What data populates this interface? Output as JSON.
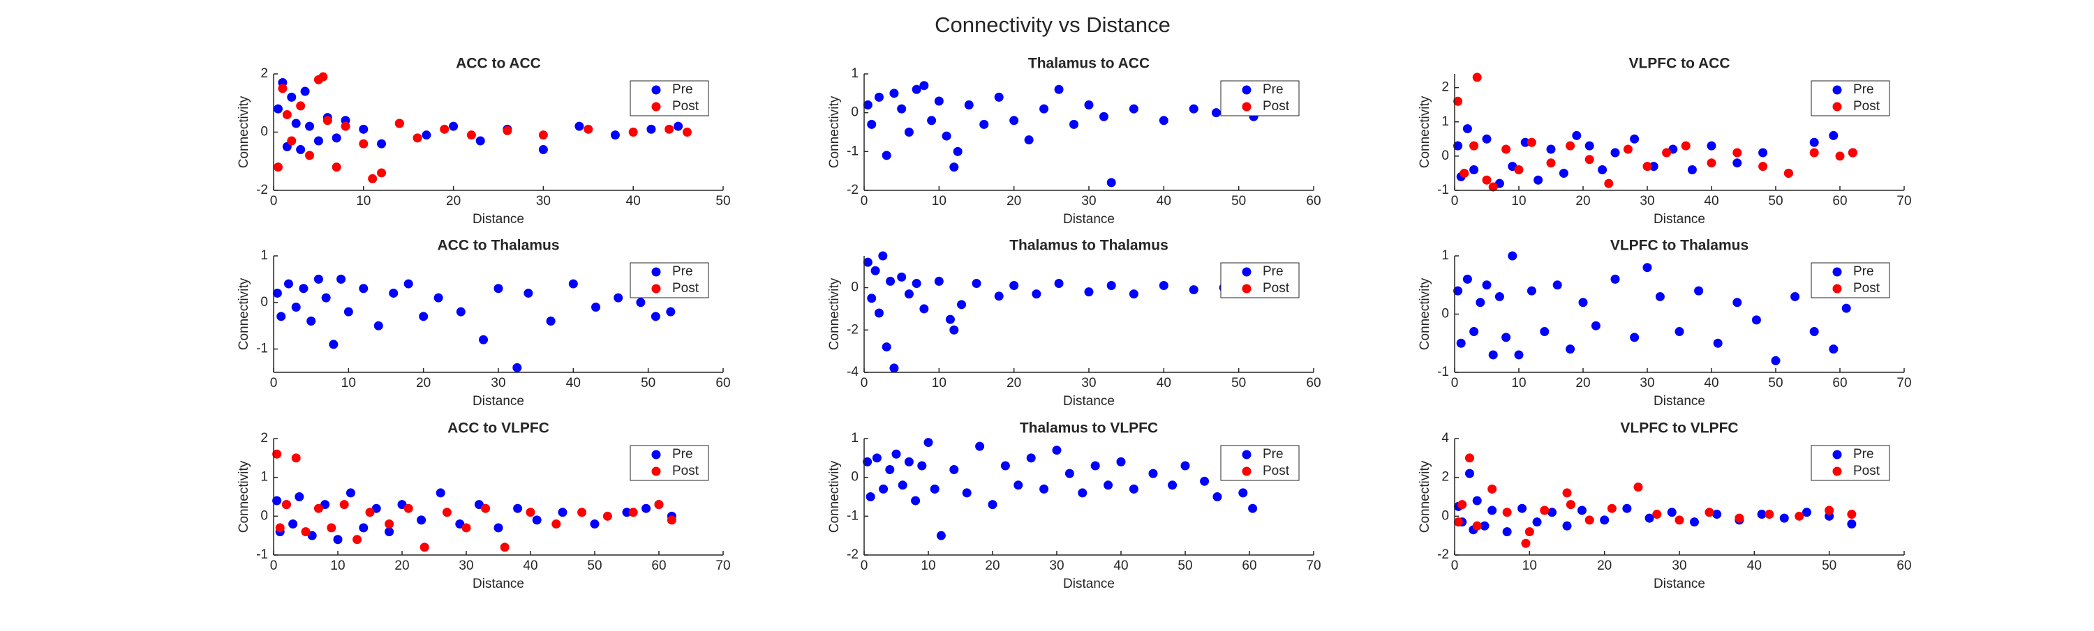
{
  "title": "Connectivity vs Distance",
  "chart_data": [
    {
      "type": "scatter",
      "title": "ACC to ACC",
      "xlabel": "Distance",
      "ylabel": "Connectivity",
      "xlim": [
        0,
        50
      ],
      "xticks": [
        0,
        10,
        20,
        30,
        40,
        50
      ],
      "ylim": [
        -2,
        2
      ],
      "yticks": [
        -2,
        0,
        2
      ],
      "legend": "northeast",
      "series": [
        {
          "name": "Pre",
          "color": "#0000ff",
          "x": [
            0.5,
            1,
            1.5,
            2,
            2.5,
            3,
            3.5,
            4,
            5,
            6,
            7,
            8,
            10,
            12,
            14,
            17,
            20,
            23,
            26,
            30,
            34,
            38,
            42,
            45
          ],
          "values": [
            0.8,
            1.7,
            -0.5,
            1.2,
            0.3,
            -0.6,
            1.4,
            0.2,
            -0.3,
            0.5,
            -0.2,
            0.4,
            0.1,
            -0.4,
            0.3,
            -0.1,
            0.2,
            -0.3,
            0.1,
            -0.6,
            0.2,
            -0.1,
            0.1,
            0.2
          ]
        },
        {
          "name": "Post",
          "color": "#ff0000",
          "x": [
            0.5,
            1,
            1.5,
            2,
            3,
            4,
            5,
            5.5,
            6,
            7,
            8,
            10,
            11,
            12,
            14,
            16,
            19,
            22,
            26,
            30,
            35,
            40,
            44,
            46
          ],
          "values": [
            -1.2,
            1.5,
            0.6,
            -0.3,
            0.9,
            -0.8,
            1.8,
            1.9,
            0.4,
            -1.2,
            0.2,
            -0.4,
            -1.6,
            -1.4,
            0.3,
            -0.2,
            0.1,
            -0.1,
            0.05,
            -0.1,
            0.1,
            0,
            0.1,
            0
          ]
        }
      ]
    },
    {
      "type": "scatter",
      "title": "Thalamus to ACC",
      "xlabel": "Distance",
      "ylabel": "Connectivity",
      "xlim": [
        0,
        60
      ],
      "xticks": [
        0,
        10,
        20,
        30,
        40,
        50,
        60
      ],
      "ylim": [
        -2,
        1
      ],
      "yticks": [
        -2,
        -1,
        0,
        1
      ],
      "legend": "northeast",
      "series": [
        {
          "name": "Pre",
          "color": "#0000ff",
          "x": [
            0.5,
            1,
            2,
            3,
            4,
            5,
            6,
            7,
            8,
            9,
            10,
            11,
            12,
            12.5,
            14,
            16,
            18,
            20,
            22,
            24,
            26,
            28,
            30,
            32,
            33,
            36,
            40,
            44,
            47,
            50,
            52
          ],
          "values": [
            0.2,
            -0.3,
            0.4,
            -1.1,
            0.5,
            0.1,
            -0.5,
            0.6,
            0.7,
            -0.2,
            0.3,
            -0.6,
            -1.4,
            -1,
            0.2,
            -0.3,
            0.4,
            -0.2,
            -0.7,
            0.1,
            0.6,
            -0.3,
            0.2,
            -0.1,
            -1.8,
            0.1,
            -0.2,
            0.1,
            0,
            0.05,
            -0.1
          ]
        },
        {
          "name": "Post",
          "color": "#ff0000",
          "x": [],
          "values": []
        }
      ]
    },
    {
      "type": "scatter",
      "title": "VLPFC to ACC",
      "xlabel": "Distance",
      "ylabel": "Connectivity",
      "xlim": [
        0,
        70
      ],
      "xticks": [
        0,
        10,
        20,
        30,
        40,
        50,
        60,
        70
      ],
      "ylim": [
        -1,
        2.4
      ],
      "yticks": [
        -1,
        0,
        1,
        2
      ],
      "legend": "northeast",
      "series": [
        {
          "name": "Pre",
          "color": "#0000ff",
          "x": [
            0.5,
            1,
            2,
            3,
            5,
            7,
            9,
            11,
            13,
            15,
            17,
            19,
            21,
            23,
            25,
            28,
            31,
            34,
            37,
            40,
            44,
            48,
            52,
            56,
            59,
            62
          ],
          "values": [
            0.3,
            -0.6,
            0.8,
            -0.4,
            0.5,
            -0.8,
            -0.3,
            0.4,
            -0.7,
            0.2,
            -0.5,
            0.6,
            0.3,
            -0.4,
            0.1,
            0.5,
            -0.3,
            0.2,
            -0.4,
            0.3,
            -0.2,
            0.1,
            -0.5,
            0.4,
            0.6,
            0.1
          ]
        },
        {
          "name": "Post",
          "color": "#ff0000",
          "x": [
            0.5,
            1.5,
            3,
            3.5,
            5,
            6,
            8,
            10,
            12,
            15,
            18,
            21,
            24,
            27,
            30,
            33,
            36,
            40,
            44,
            48,
            52,
            56,
            60,
            62
          ],
          "values": [
            1.6,
            -0.5,
            0.3,
            2.3,
            -0.7,
            -0.9,
            0.2,
            -0.4,
            0.4,
            -0.2,
            0.3,
            -0.1,
            -0.8,
            0.2,
            -0.3,
            0.1,
            0.3,
            -0.2,
            0.1,
            -0.3,
            -0.5,
            0.1,
            0,
            0.1
          ]
        }
      ]
    },
    {
      "type": "scatter",
      "title": "ACC to Thalamus",
      "xlabel": "Distance",
      "ylabel": "Connectivity",
      "xlim": [
        0,
        60
      ],
      "xticks": [
        0,
        10,
        20,
        30,
        40,
        50,
        60
      ],
      "ylim": [
        -1.5,
        1
      ],
      "yticks": [
        -1,
        0,
        1
      ],
      "legend": "northeast",
      "series": [
        {
          "name": "Pre",
          "color": "#0000ff",
          "x": [
            0.5,
            1,
            2,
            3,
            4,
            5,
            6,
            7,
            8,
            9,
            10,
            12,
            14,
            16,
            18,
            20,
            22,
            25,
            28,
            30,
            32.5,
            34,
            37,
            40,
            43,
            46,
            49,
            51,
            53
          ],
          "values": [
            0.2,
            -0.3,
            0.4,
            -0.1,
            0.3,
            -0.4,
            0.5,
            0.1,
            -0.9,
            0.5,
            -0.2,
            0.3,
            -0.5,
            0.2,
            0.4,
            -0.3,
            0.1,
            -0.2,
            -0.8,
            0.3,
            -1.4,
            0.2,
            -0.4,
            0.4,
            -0.1,
            0.1,
            0,
            -0.3,
            -0.2
          ]
        },
        {
          "name": "Post",
          "color": "#ff0000",
          "x": [],
          "values": []
        }
      ]
    },
    {
      "type": "scatter",
      "title": "Thalamus to Thalamus",
      "xlabel": "Distance",
      "ylabel": "Connectivity",
      "xlim": [
        0,
        60
      ],
      "xticks": [
        0,
        10,
        20,
        30,
        40,
        50,
        60
      ],
      "ylim": [
        -4,
        1.5
      ],
      "yticks": [
        -4,
        -2,
        0
      ],
      "legend": "northeast",
      "series": [
        {
          "name": "Pre",
          "color": "#0000ff",
          "x": [
            0.5,
            1,
            1.5,
            2,
            2.5,
            3,
            3.5,
            4,
            5,
            6,
            7,
            8,
            10,
            11.5,
            12,
            13,
            15,
            18,
            20,
            23,
            26,
            30,
            33,
            36,
            40,
            44,
            48,
            52
          ],
          "values": [
            1.2,
            -0.5,
            0.8,
            -1.2,
            1.5,
            -2.8,
            0.3,
            -3.8,
            0.5,
            -0.3,
            0.2,
            -1,
            0.3,
            -1.5,
            -2,
            -0.8,
            0.2,
            -0.4,
            0.1,
            -0.3,
            0.2,
            -0.2,
            0.1,
            -0.3,
            0.1,
            -0.1,
            0,
            0
          ]
        },
        {
          "name": "Post",
          "color": "#ff0000",
          "x": [],
          "values": []
        }
      ]
    },
    {
      "type": "scatter",
      "title": "VLPFC to Thalamus",
      "xlabel": "Distance",
      "ylabel": "Connectivity",
      "xlim": [
        0,
        70
      ],
      "xticks": [
        0,
        10,
        20,
        30,
        40,
        50,
        60,
        70
      ],
      "ylim": [
        -1,
        1
      ],
      "yticks": [
        -1,
        0,
        1
      ],
      "legend": "northeast",
      "series": [
        {
          "name": "Pre",
          "color": "#0000ff",
          "x": [
            0.5,
            1,
            2,
            3,
            4,
            5,
            6,
            7,
            8,
            9,
            10,
            12,
            14,
            16,
            18,
            20,
            22,
            25,
            28,
            30,
            32,
            35,
            38,
            41,
            44,
            47,
            50,
            53,
            56,
            59,
            61
          ],
          "values": [
            0.4,
            -0.5,
            0.6,
            -0.3,
            0.2,
            0.5,
            -0.7,
            0.3,
            -0.4,
            1,
            -0.7,
            0.4,
            -0.3,
            0.5,
            -0.6,
            0.2,
            -0.2,
            0.6,
            -0.4,
            0.8,
            0.3,
            -0.3,
            0.4,
            -0.5,
            0.2,
            -0.1,
            -0.8,
            0.3,
            -0.3,
            -0.6,
            0.1
          ]
        },
        {
          "name": "Post",
          "color": "#ff0000",
          "x": [],
          "values": []
        }
      ]
    },
    {
      "type": "scatter",
      "title": "ACC to VLPFC",
      "xlabel": "Distance",
      "ylabel": "Connectivity",
      "xlim": [
        0,
        70
      ],
      "xticks": [
        0,
        10,
        20,
        30,
        40,
        50,
        60,
        70
      ],
      "ylim": [
        -1,
        2
      ],
      "yticks": [
        -1,
        0,
        1,
        2
      ],
      "legend": "northeast",
      "series": [
        {
          "name": "Pre",
          "color": "#0000ff",
          "x": [
            0.5,
            1,
            2,
            3,
            4,
            6,
            8,
            10,
            12,
            14,
            16,
            18,
            20,
            23,
            26,
            29,
            32,
            35,
            38,
            41,
            45,
            50,
            55,
            58,
            60,
            62
          ],
          "values": [
            0.4,
            -0.4,
            0.3,
            -0.2,
            0.5,
            -0.5,
            0.3,
            -0.6,
            0.6,
            -0.3,
            0.2,
            -0.4,
            0.3,
            -0.1,
            0.6,
            -0.2,
            0.3,
            -0.3,
            0.2,
            -0.1,
            0.1,
            -0.2,
            0.1,
            0.2,
            0.3,
            0
          ]
        },
        {
          "name": "Post",
          "color": "#ff0000",
          "x": [
            0.5,
            1,
            2,
            3.5,
            5,
            7,
            9,
            11,
            13,
            15,
            18,
            21,
            23.5,
            27,
            30,
            33,
            36,
            40,
            44,
            48,
            52,
            56,
            60,
            62
          ],
          "values": [
            1.6,
            -0.3,
            0.3,
            1.5,
            -0.4,
            0.2,
            -0.3,
            0.3,
            -0.6,
            0.1,
            -0.2,
            0.2,
            -0.8,
            0.1,
            -0.3,
            0.2,
            -0.8,
            0.1,
            -0.2,
            0.1,
            0,
            0.1,
            0.3,
            -0.1
          ]
        }
      ]
    },
    {
      "type": "scatter",
      "title": "Thalamus to VLPFC",
      "xlabel": "Distance",
      "ylabel": "Connectivity",
      "xlim": [
        0,
        70
      ],
      "xticks": [
        0,
        10,
        20,
        30,
        40,
        50,
        60,
        70
      ],
      "ylim": [
        -2,
        1
      ],
      "yticks": [
        -2,
        -1,
        0,
        1
      ],
      "legend": "northeast",
      "series": [
        {
          "name": "Pre",
          "color": "#0000ff",
          "x": [
            0.5,
            1,
            2,
            3,
            4,
            5,
            6,
            7,
            8,
            9,
            10,
            11,
            12,
            14,
            16,
            18,
            20,
            22,
            24,
            26,
            28,
            30,
            32,
            34,
            36,
            38,
            40,
            42,
            45,
            48,
            50,
            53,
            55,
            57,
            59,
            60.5
          ],
          "values": [
            0.4,
            -0.5,
            0.5,
            -0.3,
            0.2,
            0.6,
            -0.2,
            0.4,
            -0.6,
            0.3,
            0.9,
            -0.3,
            -1.5,
            0.2,
            -0.4,
            0.8,
            -0.7,
            0.3,
            -0.2,
            0.5,
            -0.3,
            0.7,
            0.1,
            -0.4,
            0.3,
            -0.2,
            0.4,
            -0.3,
            0.1,
            -0.2,
            0.3,
            -0.1,
            -0.5,
            0.2,
            -0.4,
            -0.8
          ]
        },
        {
          "name": "Post",
          "color": "#ff0000",
          "x": [],
          "values": []
        }
      ]
    },
    {
      "type": "scatter",
      "title": "VLPFC to VLPFC",
      "xlabel": "Distance",
      "ylabel": "Connectivity",
      "xlim": [
        0,
        60
      ],
      "xticks": [
        0,
        10,
        20,
        30,
        40,
        50,
        60
      ],
      "ylim": [
        -2,
        4
      ],
      "yticks": [
        -2,
        0,
        2,
        4
      ],
      "legend": "northeast",
      "series": [
        {
          "name": "Pre",
          "color": "#0000ff",
          "x": [
            0.5,
            1,
            2,
            2.5,
            3,
            4,
            5,
            7,
            9,
            11,
            13,
            15,
            17,
            20,
            23,
            26,
            29,
            32,
            35,
            38,
            41,
            44,
            47,
            50,
            53
          ],
          "values": [
            0.5,
            -0.3,
            2.2,
            -0.7,
            0.8,
            -0.5,
            0.3,
            -0.8,
            0.4,
            -0.3,
            0.2,
            -0.5,
            0.3,
            -0.2,
            0.4,
            -0.1,
            0.2,
            -0.3,
            0.1,
            -0.2,
            0.1,
            -0.1,
            0.2,
            0,
            -0.4
          ]
        },
        {
          "name": "Post",
          "color": "#ff0000",
          "x": [
            0.5,
            1,
            2,
            3,
            5,
            7,
            9.5,
            10,
            12,
            15,
            15.5,
            18,
            21,
            24.5,
            27,
            30,
            34,
            38,
            42,
            46,
            50,
            53
          ],
          "values": [
            -0.3,
            0.6,
            3,
            -0.5,
            1.4,
            0.2,
            -1.4,
            -0.8,
            0.3,
            1.2,
            0.6,
            -0.2,
            0.4,
            1.5,
            0.1,
            -0.2,
            0.2,
            -0.1,
            0.1,
            0,
            0.3,
            0.1
          ]
        }
      ]
    }
  ]
}
